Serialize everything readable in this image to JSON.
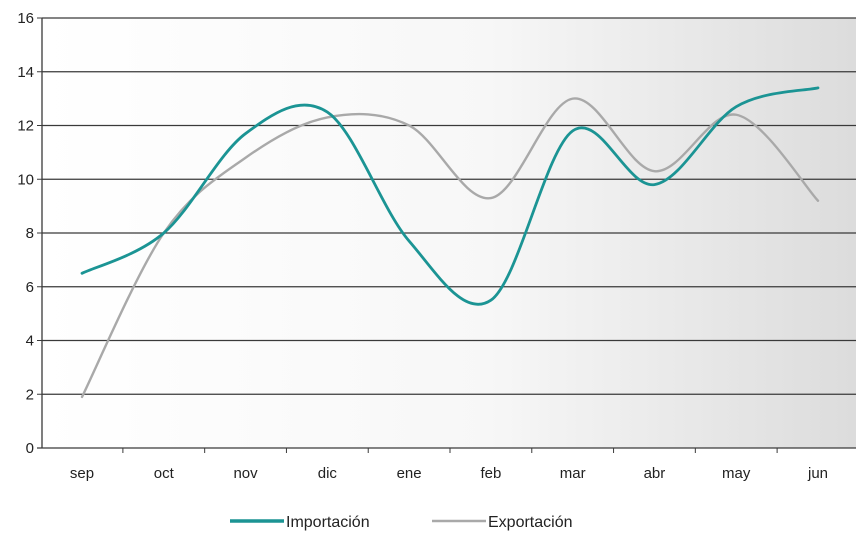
{
  "chart_data": {
    "type": "line",
    "title": "",
    "xlabel": "",
    "ylabel": "",
    "categories": [
      "sep",
      "oct",
      "nov",
      "dic",
      "ene",
      "feb",
      "mar",
      "abr",
      "may",
      "jun"
    ],
    "ylim": [
      0,
      16
    ],
    "yticks": [
      0,
      2,
      4,
      6,
      8,
      10,
      12,
      14,
      16
    ],
    "grid": true,
    "smooth": true,
    "legend": "bottom",
    "series": [
      {
        "name": "Importación",
        "color": "#1b9494",
        "values": [
          6.5,
          8.0,
          11.7,
          12.5,
          7.7,
          5.5,
          11.8,
          9.8,
          12.7,
          13.4
        ]
      },
      {
        "name": "Exportación",
        "color": "#a9a9a9",
        "values": [
          1.9,
          8.0,
          10.8,
          12.3,
          12.0,
          9.3,
          13.0,
          10.3,
          12.4,
          9.2
        ]
      }
    ]
  }
}
